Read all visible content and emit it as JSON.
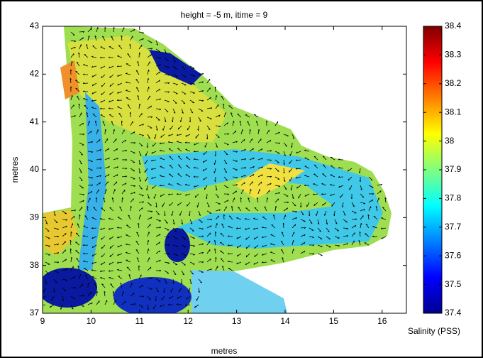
{
  "chart_data": {
    "type": "map",
    "title": "height = -5 m, itime = 9",
    "x_label": "metres",
    "y_label": "metres",
    "colorbar_label": "Salinity (PSS)",
    "xlim": [
      9,
      16.5
    ],
    "ylim": [
      37,
      43
    ],
    "xticks": [
      9,
      10,
      11,
      12,
      13,
      14,
      15,
      16
    ],
    "yticks": [
      37,
      38,
      39,
      40,
      41,
      42,
      43
    ],
    "clim": [
      37.4,
      38.4
    ],
    "cticks": [
      37.4,
      37.5,
      37.6,
      37.7,
      37.8,
      37.9,
      38,
      38.1,
      38.2,
      38.3,
      38.4
    ],
    "colormap": "jet"
  }
}
